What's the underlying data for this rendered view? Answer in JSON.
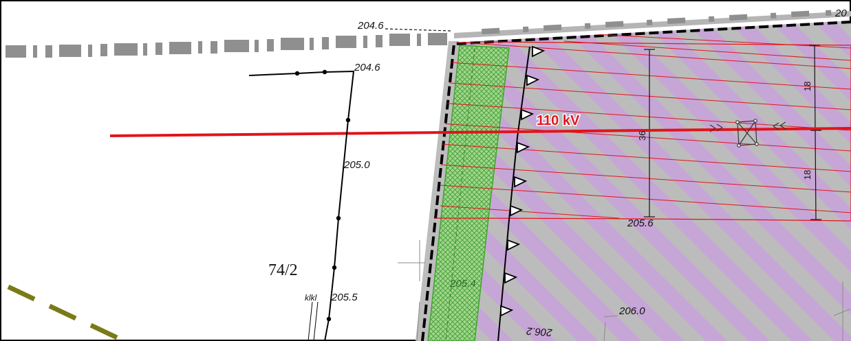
{
  "map": {
    "elevations": {
      "top_road": "204.6",
      "path_corner": "204.6",
      "path_mid": "205.0",
      "path_low": "205.5",
      "zone_bottom": "205.6",
      "green_strip": "205.4",
      "bottom_right": "206.0",
      "upside_down": "206.2"
    },
    "parcel_number": "74/2",
    "small_label": "klkl",
    "power_line_label": "110 kV",
    "dimensions": {
      "total_width": "36",
      "half_upper": "18",
      "half_lower": "18"
    },
    "corner_fragment": "20",
    "colors": {
      "power_line": "#e1141b",
      "zone_purple": "#c6a6d6",
      "zone_grey": "#bcbcbc",
      "green_strip": "#9fd68c",
      "road_grey": "#8f8f8f",
      "dashed_olive": "#7a7a18"
    }
  }
}
